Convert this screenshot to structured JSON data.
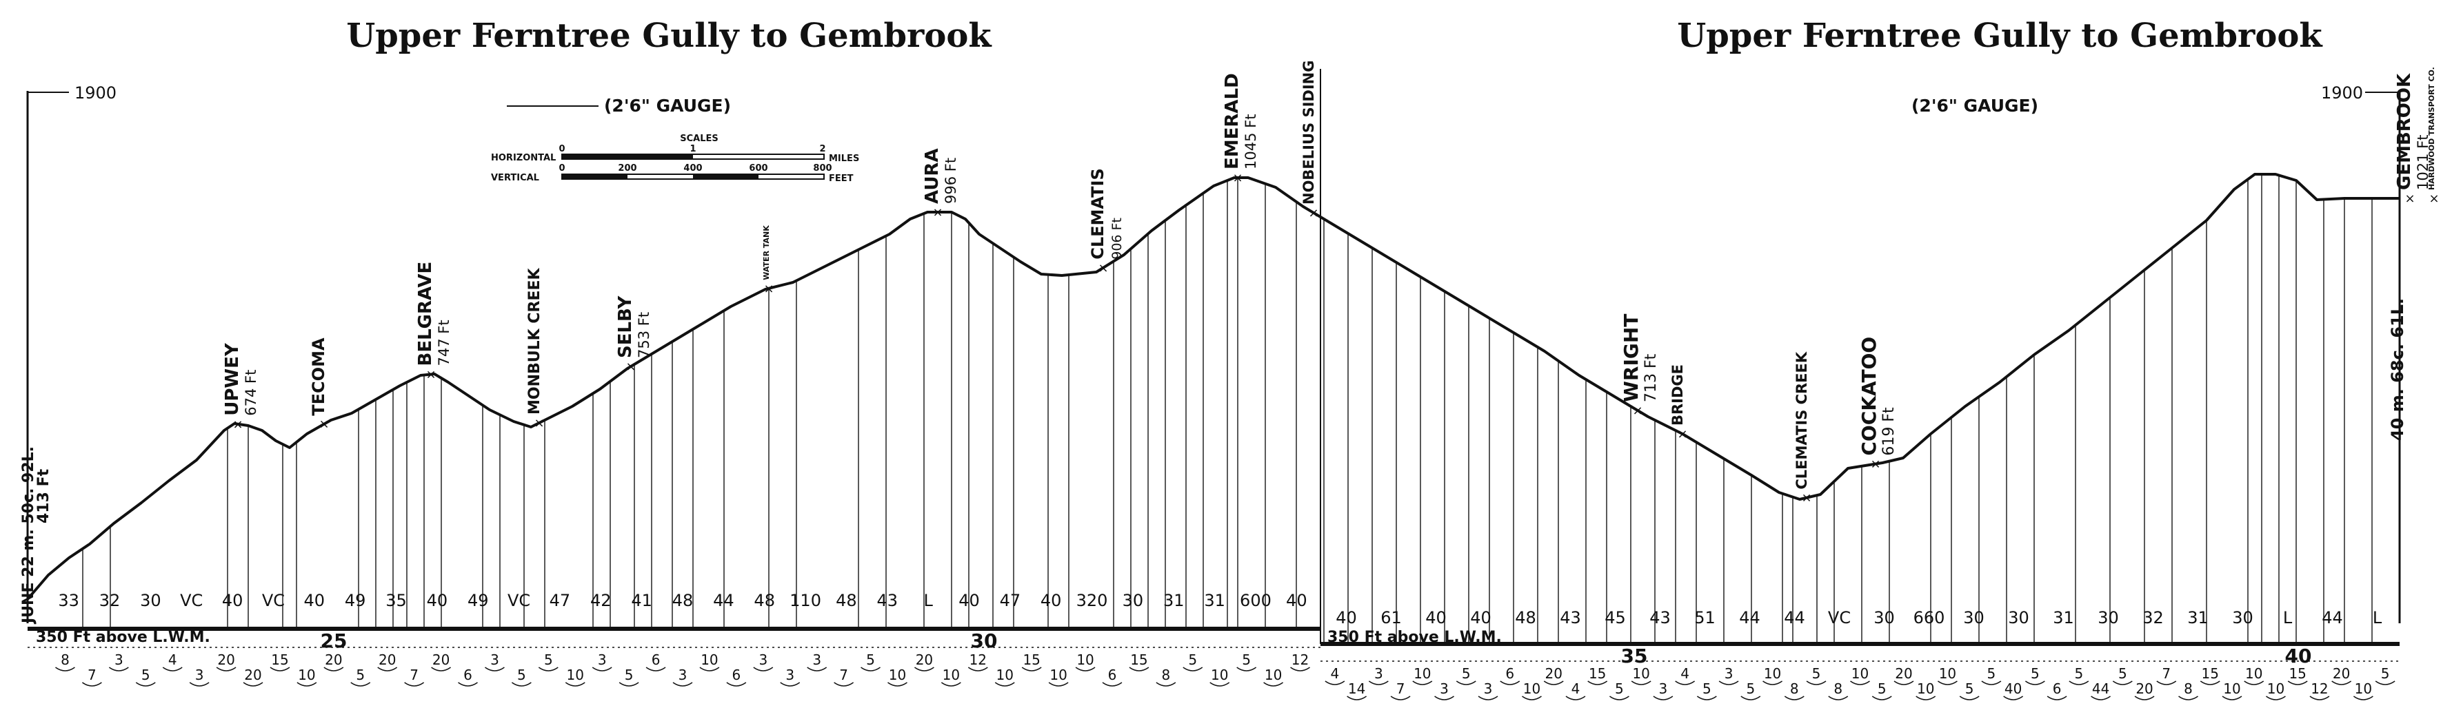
{
  "titles": {
    "left": "Upper Ferntree Gully to Gembrook",
    "right": "Upper Ferntree Gully to Gembrook"
  },
  "gauge": {
    "left": "(2'6\" GAUGE)",
    "right": "(2'6\" GAUGE)"
  },
  "year": {
    "left": "1900",
    "right": "1900"
  },
  "datum": {
    "left": "350 Ft above L.W.M.",
    "right": "350 Ft above L.W.M."
  },
  "scales": {
    "title": "SCALES",
    "horizontal_label": "HORIZONTAL",
    "vertical_label": "VERTICAL",
    "horizontal_ticks": [
      "0",
      "1",
      "2"
    ],
    "horizontal_unit": "MILES",
    "vertical_ticks": [
      "0",
      "200",
      "400",
      "600",
      "800"
    ],
    "vertical_unit": "FEET"
  },
  "start_note": {
    "line1": "JUNE 22 m. 50c. 92L.",
    "line2": "413 Ft"
  },
  "end_note": {
    "line1": "40 m. 68c. 61L.",
    "line2": ""
  },
  "stations": [
    {
      "name": "UPWEY",
      "elev": "674 Ft"
    },
    {
      "name": "TECOMA",
      "elev": ""
    },
    {
      "name": "BELGRAVE",
      "elev": "747 Ft"
    },
    {
      "name": "MONBULK CREEK",
      "elev": ""
    },
    {
      "name": "SELBY",
      "elev": "753 Ft"
    },
    {
      "name": "WATER TANK",
      "elev": ""
    },
    {
      "name": "AURA",
      "elev": "996 Ft"
    },
    {
      "name": "CLEMATIS",
      "elev": "906 Ft"
    },
    {
      "name": "EMERALD",
      "elev": "1045 Ft"
    },
    {
      "name": "NOBELIUS SIDING",
      "elev": ""
    },
    {
      "name": "WRIGHT",
      "elev": "713 Ft"
    },
    {
      "name": "BRIDGE",
      "elev": ""
    },
    {
      "name": "CLEMATIS CREEK",
      "elev": ""
    },
    {
      "name": "COCKATOO",
      "elev": "619 Ft"
    },
    {
      "name": "GEMBROOK",
      "elev": "1021 Ft"
    },
    {
      "name": "HARDWOOD TRANSPORT CO.",
      "elev": ""
    }
  ],
  "mileposts": [
    "25",
    "30",
    "35",
    "40"
  ],
  "gradients": {
    "left": [
      "33",
      "32",
      "30",
      "VC",
      "40",
      "VC",
      "40",
      "49",
      "35",
      "40",
      "49",
      "VC",
      "47",
      "42",
      "41",
      "48",
      "44",
      "48",
      "110",
      "48",
      "43",
      "L",
      "40",
      "47",
      "40",
      "320",
      "30",
      "31",
      "31",
      "600",
      "40"
    ],
    "right": [
      "40",
      "61",
      "40",
      "40",
      "48",
      "43",
      "45",
      "43",
      "51",
      "44",
      "44",
      "VC",
      "30",
      "660",
      "30",
      "30",
      "31",
      "30",
      "32",
      "31",
      "30",
      "L",
      "44",
      "L"
    ]
  },
  "curves": {
    "left": [
      "8",
      "7",
      "3",
      "5",
      "4",
      "3",
      "20",
      "20",
      "15",
      "10",
      "20",
      "5",
      "20",
      "7",
      "20",
      "6",
      "3",
      "5",
      "5",
      "10",
      "3",
      "5",
      "6",
      "3",
      "10",
      "6",
      "3",
      "3",
      "3",
      "7",
      "5",
      "10",
      "20",
      "10",
      "12",
      "10",
      "15",
      "10",
      "10",
      "6",
      "15",
      "8",
      "5",
      "10",
      "5",
      "10",
      "12"
    ],
    "right": [
      "4",
      "14",
      "3",
      "7",
      "10",
      "3",
      "5",
      "3",
      "6",
      "10",
      "20",
      "4",
      "15",
      "5",
      "10",
      "3",
      "4",
      "5",
      "3",
      "5",
      "10",
      "8",
      "5",
      "8",
      "10",
      "5",
      "20",
      "10",
      "10",
      "5",
      "5",
      "40",
      "5",
      "6",
      "5",
      "44",
      "5",
      "20",
      "7",
      "8",
      "15",
      "10",
      "10",
      "10",
      "15",
      "12",
      "20",
      "10",
      "5"
    ]
  }
}
